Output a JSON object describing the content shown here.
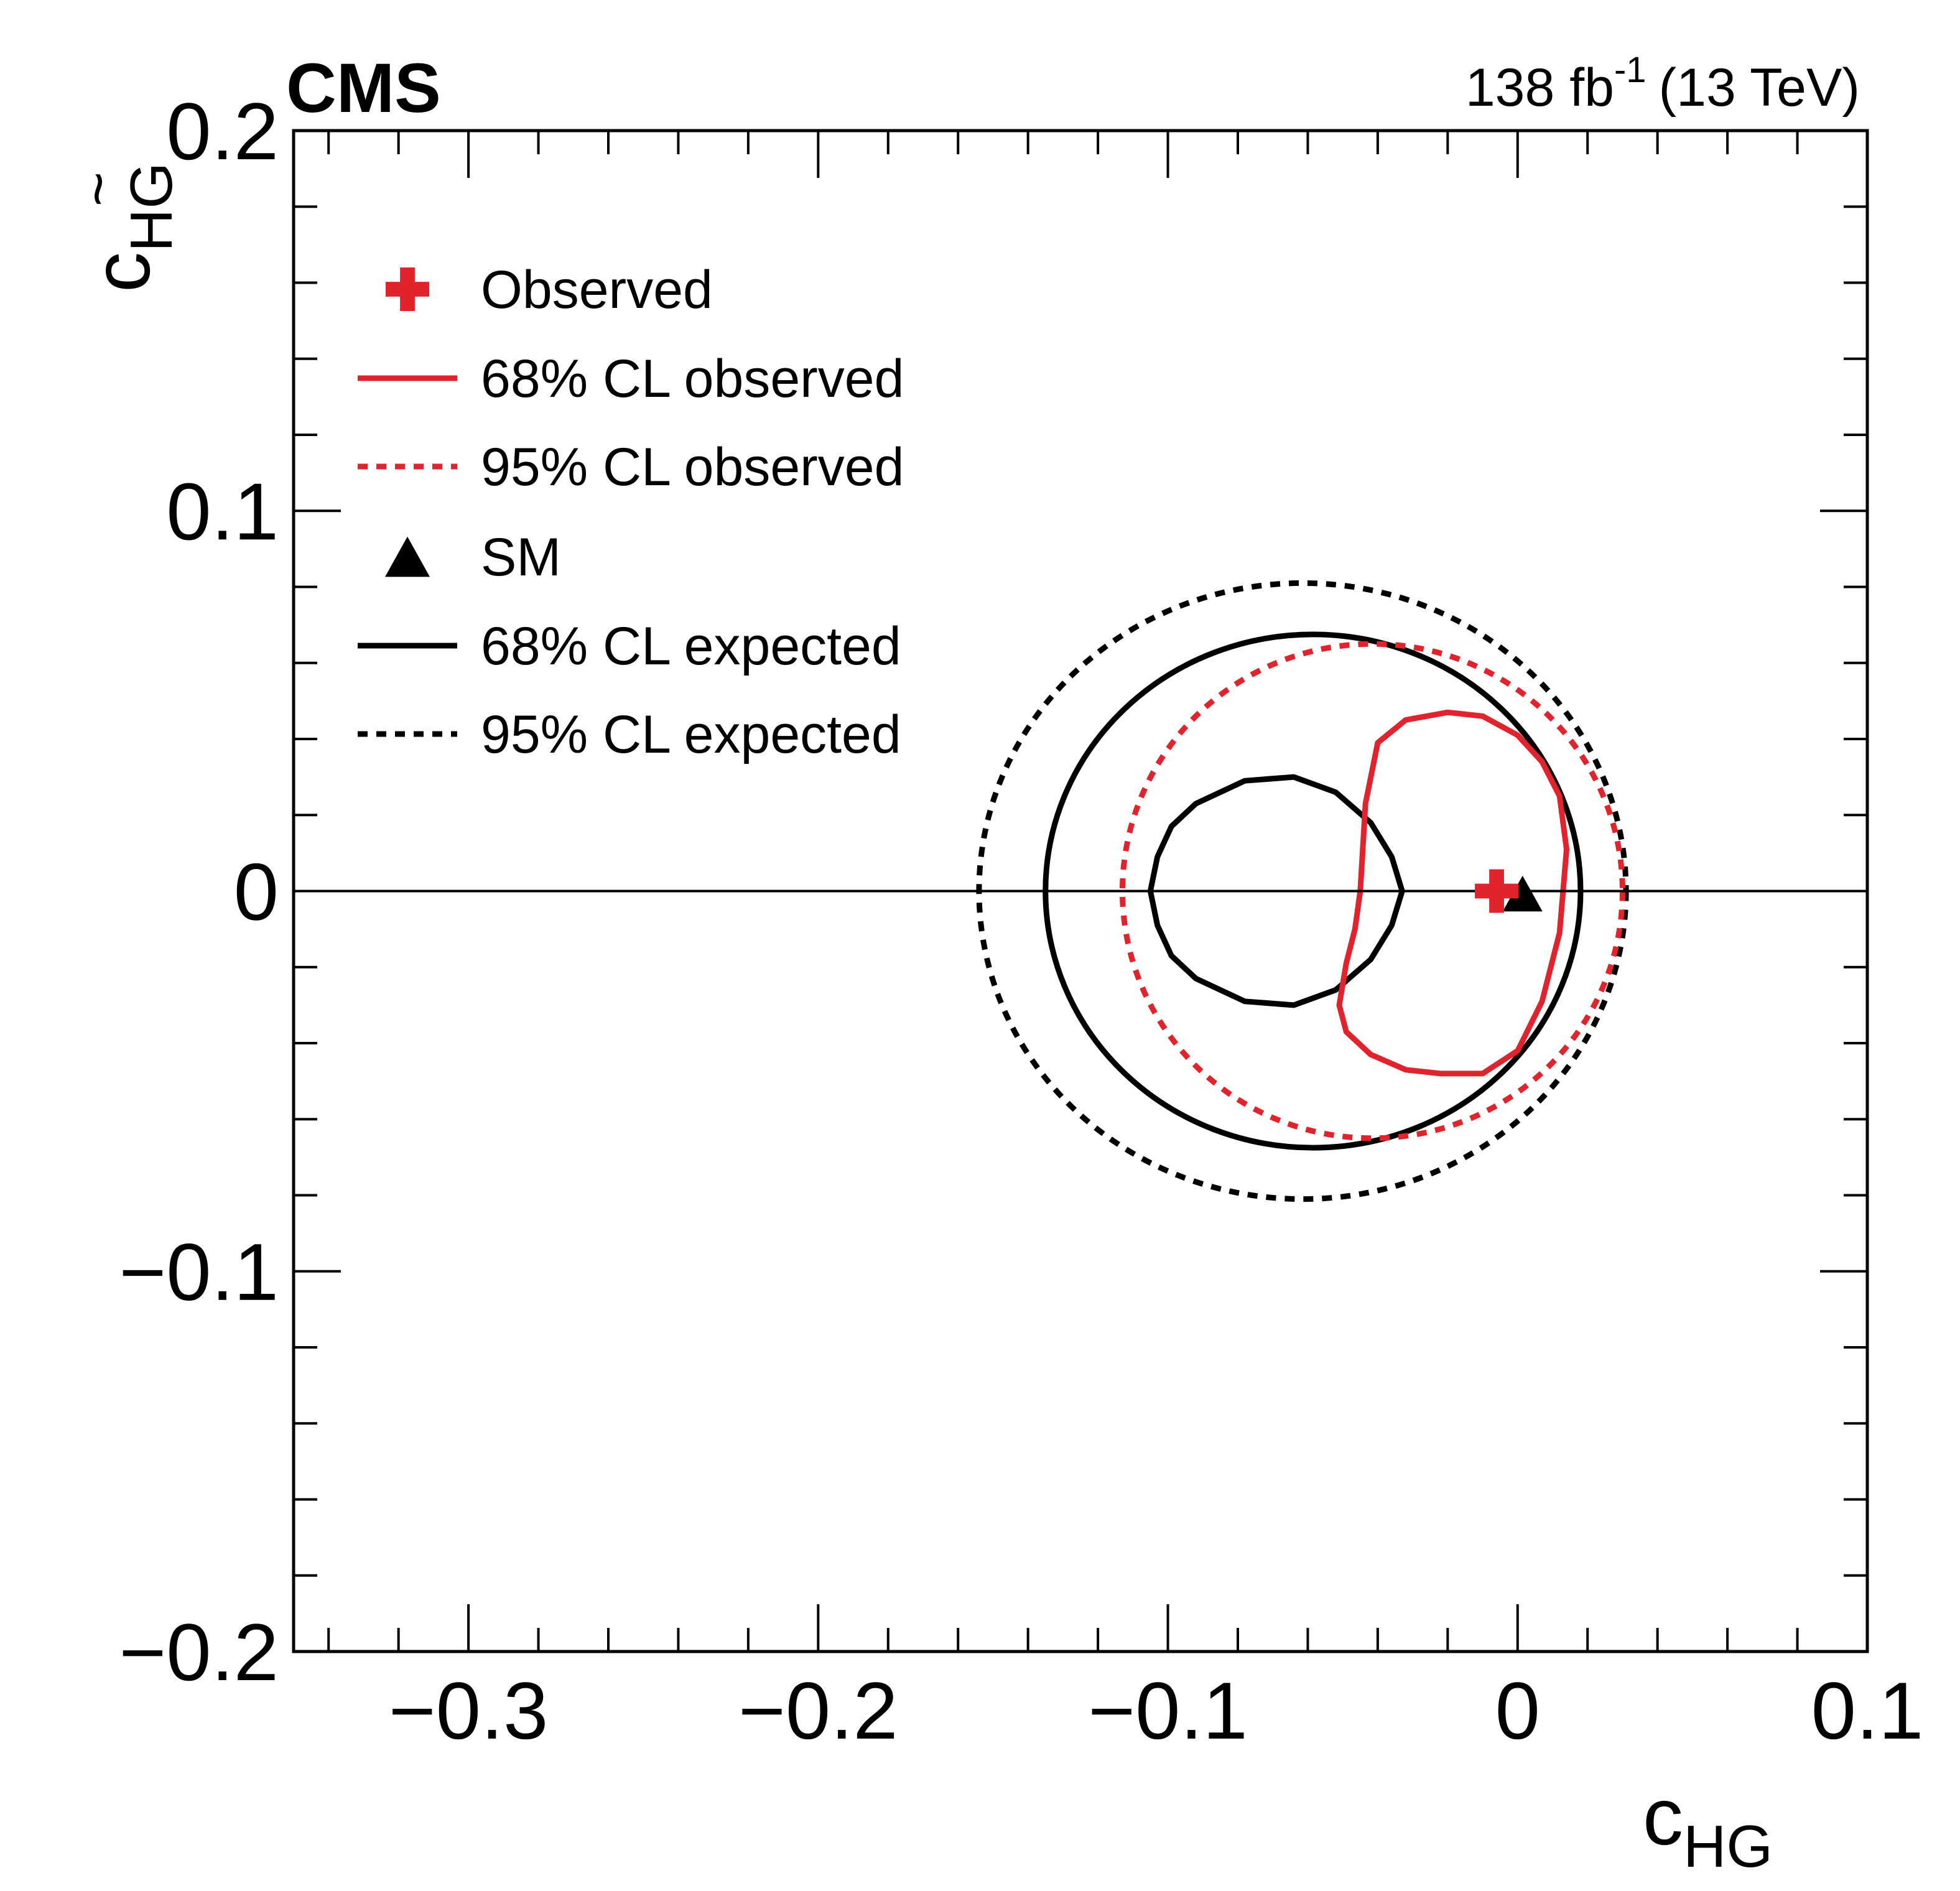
{
  "chart_data": {
    "type": "contour",
    "experiment": "CMS",
    "luminosity": {
      "main": "138 fb",
      "sup": "-1",
      "energy": "(13 TeV)"
    },
    "xlabel": {
      "main": "c",
      "sub": "HG"
    },
    "ylabel": {
      "main": "c",
      "sub": "HG",
      "accent": "~"
    },
    "xlim": [
      -0.35,
      0.1
    ],
    "ylim": [
      -0.2,
      0.2
    ],
    "x_ticks": [
      {
        "value": -0.3,
        "label": "−0.3"
      },
      {
        "value": -0.2,
        "label": "−0.2"
      },
      {
        "value": -0.1,
        "label": "−0.1"
      },
      {
        "value": 0,
        "label": "0"
      },
      {
        "value": 0.1,
        "label": "0.1"
      }
    ],
    "y_ticks": [
      {
        "value": -0.2,
        "label": "−0.2"
      },
      {
        "value": -0.1,
        "label": "−0.1"
      },
      {
        "value": 0,
        "label": "0"
      },
      {
        "value": 0.1,
        "label": "0.1"
      },
      {
        "value": 0.2,
        "label": "0.2"
      }
    ],
    "x_minor_step": 0.02,
    "y_minor_step": 0.02,
    "reference_line_y": 0,
    "legend": [
      {
        "key": "observed",
        "label": "Observed",
        "marker": "cross",
        "color": "#e0232d"
      },
      {
        "key": "obs68",
        "label": "68% CL observed",
        "line": "solid",
        "color": "#e0232d"
      },
      {
        "key": "obs95",
        "label": "95% CL observed",
        "line": "dotted",
        "color": "#e0232d"
      },
      {
        "key": "sm",
        "label": "SM",
        "marker": "triangle",
        "color": "#000000"
      },
      {
        "key": "exp68",
        "label": "68% CL expected",
        "line": "solid",
        "color": "#000000"
      },
      {
        "key": "exp95",
        "label": "95% CL expected",
        "line": "dotted",
        "color": "#000000"
      }
    ],
    "points": {
      "observed": {
        "x": -0.006,
        "y": 0.0
      },
      "sm": {
        "x": 0.0,
        "y": 0.0
      }
    },
    "contours": {
      "obs68": {
        "color": "#e0232d",
        "style": "solid",
        "x": [
          -0.045,
          -0.0435,
          -0.04,
          -0.032,
          -0.02,
          -0.01,
          0.0,
          0.007,
          0.012,
          0.014,
          0.012,
          0.007,
          0.0,
          -0.01,
          -0.022,
          -0.032,
          -0.042,
          -0.049,
          -0.051,
          -0.049,
          -0.0465,
          -0.045
        ],
        "y": [
          0.0,
          0.023,
          0.039,
          0.045,
          0.047,
          0.046,
          0.041,
          0.034,
          0.025,
          0.011,
          -0.011,
          -0.029,
          -0.042,
          -0.048,
          -0.048,
          -0.047,
          -0.043,
          -0.037,
          -0.03,
          -0.019,
          -0.01,
          0.0
        ]
      },
      "obs95": {
        "color": "#e0232d",
        "style": "dotted",
        "center": [
          -0.0415,
          0.0
        ],
        "radii": [
          0.0715,
          0.065
        ]
      },
      "exp68_inner": {
        "color": "#000000",
        "style": "solid",
        "x": [
          -0.105,
          -0.103,
          -0.099,
          -0.092,
          -0.078,
          -0.064,
          -0.052,
          -0.042,
          -0.036,
          -0.033,
          -0.036,
          -0.042,
          -0.052,
          -0.064,
          -0.078,
          -0.092,
          -0.099,
          -0.103,
          -0.105
        ],
        "y": [
          0.0,
          0.009,
          0.017,
          0.023,
          0.029,
          0.03,
          0.026,
          0.018,
          0.009,
          0.0,
          -0.009,
          -0.018,
          -0.026,
          -0.03,
          -0.029,
          -0.023,
          -0.017,
          -0.009,
          0.0
        ]
      },
      "exp68_outer": {
        "color": "#000000",
        "style": "solid",
        "center": [
          -0.0585,
          0.0
        ],
        "radii": [
          0.0765,
          0.0675
        ]
      },
      "exp95": {
        "color": "#000000",
        "style": "dotted",
        "center": [
          -0.0615,
          0.0
        ],
        "radii": [
          0.0925,
          0.081
        ]
      }
    }
  }
}
